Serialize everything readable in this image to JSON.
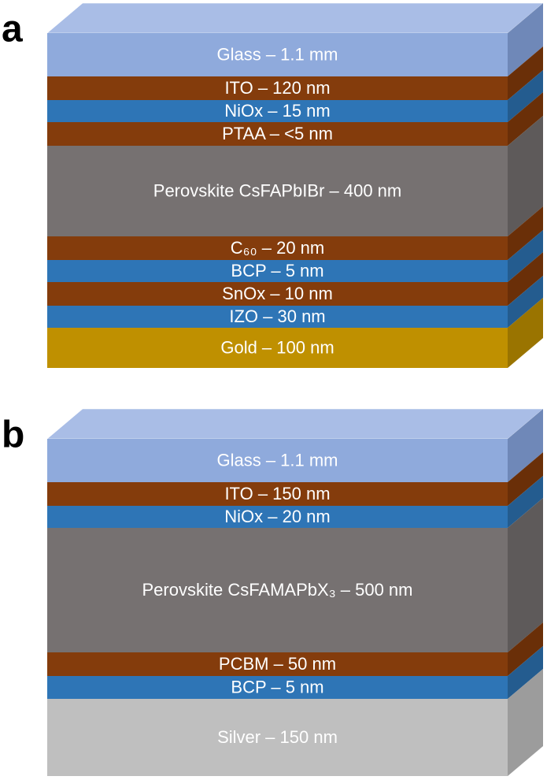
{
  "panels": [
    {
      "label": "a",
      "layers": [
        "Glass – 1.1 mm",
        "ITO – 120 nm",
        "NiOx – 15 nm",
        "PTAA – <5 nm",
        "Perovskite CsFAPbIBr – 400 nm",
        "C₆₀ – 20 nm",
        "BCP – 5 nm",
        "SnOx – 10 nm",
        "IZO – 30 nm",
        "Gold – 100 nm"
      ]
    },
    {
      "label": "b",
      "layers": [
        "Glass – 1.1 mm",
        "ITO – 150 nm",
        "NiOx – 20 nm",
        "Perovskite CsFAMAPbX₃ – 500 nm",
        "PCBM – 50 nm",
        "BCP – 5 nm",
        "Silver – 150 nm"
      ]
    }
  ]
}
